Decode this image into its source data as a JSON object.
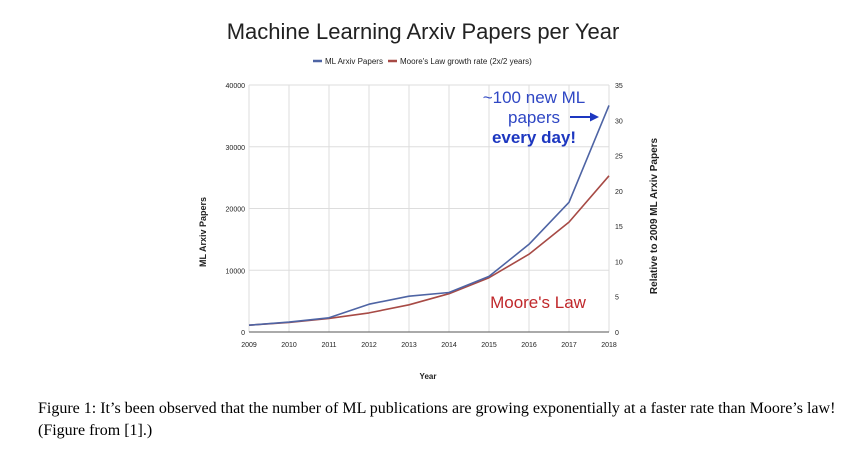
{
  "chart_data": {
    "type": "line",
    "title": "Machine Learning Arxiv Papers per Year",
    "xlabel": "Year",
    "ylabel": "ML Arxiv Papers",
    "y2label": "Relative to 2009 ML Arxiv Papers",
    "categories": [
      "2009",
      "2010",
      "2011",
      "2012",
      "2013",
      "2014",
      "2015",
      "2016",
      "2017",
      "2018"
    ],
    "ylim": [
      0,
      40000
    ],
    "y2lim": [
      0,
      35
    ],
    "yticks": [
      "0",
      "10000",
      "20000",
      "30000",
      "40000"
    ],
    "y2ticks": [
      "0",
      "5",
      "10",
      "15",
      "20",
      "25",
      "30",
      "35"
    ],
    "grid": true,
    "legend_position": "top",
    "series": [
      {
        "name": "ML Arxiv Papers",
        "color": "#4e64a4",
        "values": [
          1100,
          1600,
          2300,
          4500,
          5800,
          6400,
          9000,
          14200,
          21000,
          36700
        ]
      },
      {
        "name": "Moore's Law growth rate (2x/2 years)",
        "color": "#a74a45",
        "values": [
          1100,
          1550,
          2200,
          3100,
          4400,
          6200,
          8800,
          12600,
          17800,
          25300
        ]
      }
    ],
    "annotations": [
      {
        "lines": [
          "~100 new ML",
          "papers"
        ],
        "color": "#2f47c4"
      },
      {
        "lines": [
          "every day!"
        ],
        "color": "#1d37c0",
        "bold": true
      },
      {
        "lines": [
          "Moore's Law"
        ],
        "color": "#c0282b"
      }
    ]
  },
  "caption": "Figure 1: It’s been observed that the number of ML publications are growing exponentially at a faster rate than Moore’s law! (Figure from [1].)"
}
